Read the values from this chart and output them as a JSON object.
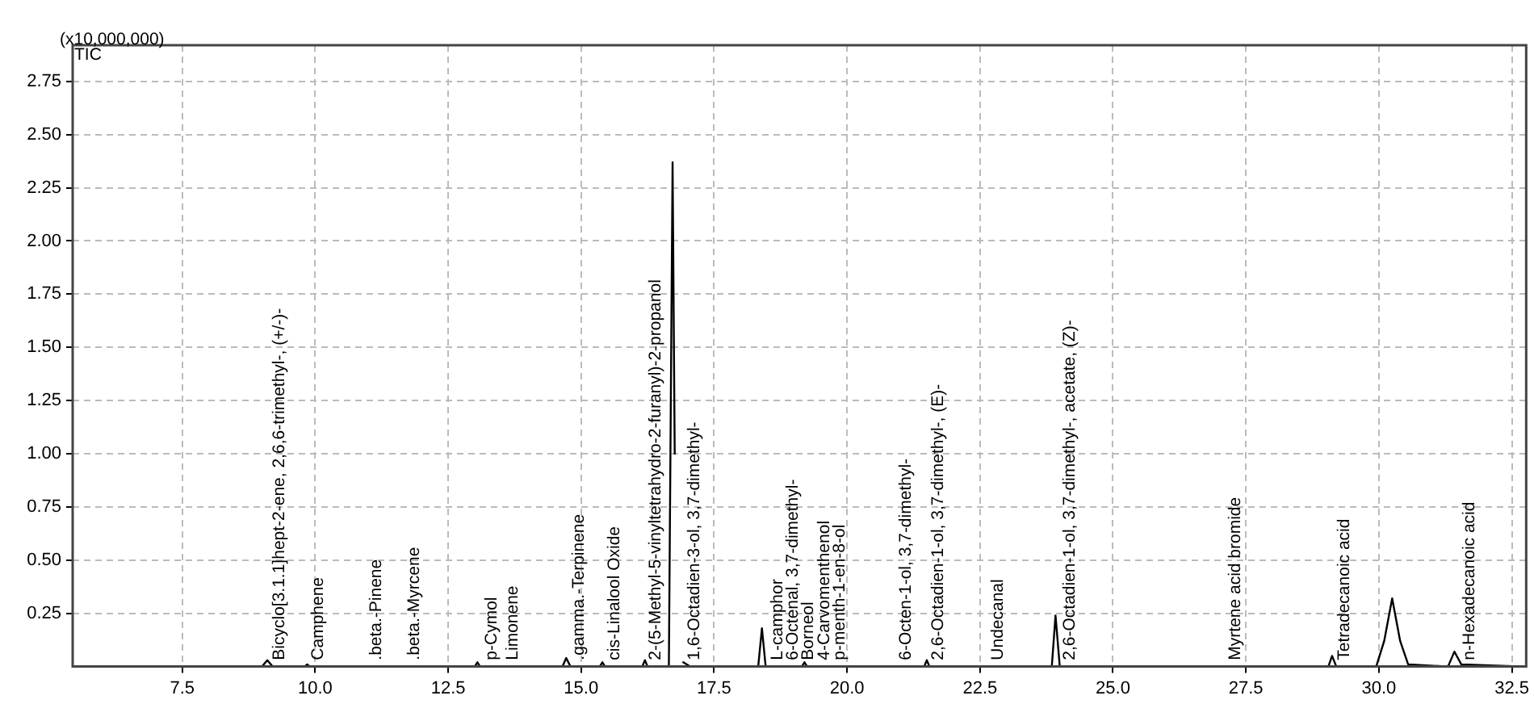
{
  "chart_data": {
    "type": "line",
    "ylabel": "(x10,000,000)",
    "x": [
      5.5,
      9.0,
      9.1,
      9.2,
      9.8,
      9.85,
      9.9,
      13.0,
      13.05,
      13.1,
      14.65,
      14.72,
      14.8,
      15.35,
      15.4,
      15.45,
      16.15,
      16.2,
      16.25,
      16.65,
      16.72,
      16.76,
      16.8,
      16.85,
      16.92,
      17.05,
      18.33,
      18.4,
      18.47,
      19.15,
      19.2,
      19.25,
      21.45,
      21.5,
      21.55,
      23.85,
      23.92,
      24.0,
      29.05,
      29.12,
      29.2,
      29.95,
      30.1,
      30.25,
      30.4,
      30.55,
      31.3,
      31.42,
      31.55,
      32.75
    ],
    "series": [
      {
        "color": "#000000",
        "values": [
          0,
          0,
          0.03,
          0,
          0,
          0.01,
          0,
          0,
          0.02,
          0,
          0,
          0.04,
          0,
          0,
          0.02,
          0,
          0,
          0.03,
          0,
          0,
          2.37,
          1.0,
          null,
          null,
          0.02,
          0,
          0,
          0.18,
          0,
          0,
          0.02,
          0,
          0,
          0.03,
          0,
          0,
          0.24,
          0,
          0,
          0.05,
          0,
          0,
          0.12,
          0.32,
          0.12,
          0.01,
          0,
          0.07,
          0.01,
          0
        ]
      }
    ],
    "xlim": [
      5.44,
      32.77
    ],
    "ylim": [
      0,
      2.92
    ],
    "xticks": [
      {
        "value": 7.5,
        "label": "7.5"
      },
      {
        "value": 10,
        "label": "10.0"
      },
      {
        "value": 12.5,
        "label": "12.5"
      },
      {
        "value": 15,
        "label": "15.0"
      },
      {
        "value": 17.5,
        "label": "17.5"
      },
      {
        "value": 20,
        "label": "20.0"
      },
      {
        "value": 22.5,
        "label": "22.5"
      },
      {
        "value": 25,
        "label": "25.0"
      },
      {
        "value": 27.5,
        "label": "27.5"
      },
      {
        "value": 30,
        "label": "30.0"
      },
      {
        "value": 32.5,
        "label": "32.5"
      }
    ],
    "yticks": [
      {
        "value": 0.25,
        "label": "0.25"
      },
      {
        "value": 0.5,
        "label": "0.50"
      },
      {
        "value": 0.75,
        "label": "0.75"
      },
      {
        "value": 1,
        "label": "1.00"
      },
      {
        "value": 1.25,
        "label": "1.25"
      },
      {
        "value": 1.5,
        "label": "1.50"
      },
      {
        "value": 1.75,
        "label": "1.75"
      },
      {
        "value": 2,
        "label": "2.00"
      },
      {
        "value": 2.25,
        "label": "2.25"
      },
      {
        "value": 2.5,
        "label": "2.50"
      },
      {
        "value": 2.75,
        "label": "2.75"
      }
    ],
    "grid": true,
    "legend": false,
    "marker": "none",
    "line_style": "solid",
    "annotations": [
      "TIC",
      {
        "text": "Bicyclo[3.1.1]hept-2-ene, 2,6,6-trimethyl-, (+/-)-",
        "x": 9.17,
        "y": 0.03
      },
      {
        "text": "Camphene",
        "x": 9.9,
        "y": 0.03
      },
      {
        "text": ".beta.-Pinene",
        "x": 10.99,
        "y": 0.03
      },
      {
        "text": ".beta.-Myrcene",
        "x": 11.71,
        "y": 0.03
      },
      {
        "text": "p-Cymol",
        "x": 13.17,
        "y": 0.03
      },
      {
        "text": "Limonene",
        "x": 13.56,
        "y": 0.03
      },
      {
        "text": ".gamma.-Terpinene",
        "x": 14.8,
        "y": 0.03
      },
      {
        "text": "cis-Linalool Oxide",
        "x": 15.47,
        "y": 0.03
      },
      {
        "text": "2-(5-Methyl-5-vinyltetrahydro-2-furanyl)-2-propanol",
        "x": 16.25,
        "y": 0.03
      },
      {
        "text": "1,6-Octadien-3-ol, 3,7-dimethyl-",
        "x": 16.97,
        "y": 0.03
      },
      {
        "text": "L-camphor",
        "x": 18.53,
        "y": 0.03
      },
      {
        "text": "6-Octenal, 3,7-dimethyl-",
        "x": 18.83,
        "y": 0.03
      },
      {
        "text": "Borneol",
        "x": 19.12,
        "y": 0.03
      },
      {
        "text": "4-Carvomenthenol",
        "x": 19.41,
        "y": 0.03
      },
      {
        "text": "p-menth-1-en-8-ol",
        "x": 19.7,
        "y": 0.03
      },
      {
        "text": "6-Octen-1-ol, 3,7-dimethyl-",
        "x": 20.95,
        "y": 0.03
      },
      {
        "text": "2,6-Octadien-1-ol, 3,7-dimethyl-, (E)-",
        "x": 21.56,
        "y": 0.03
      },
      {
        "text": "Undecanal",
        "x": 22.68,
        "y": 0.03
      },
      {
        "text": "2,6-Octadien-1-ol, 3,7-dimethyl-, acetate, (Z)-",
        "x": 24.03,
        "y": 0.03
      },
      {
        "text": "Myrtene acid bromide",
        "x": 27.15,
        "y": 0.03
      },
      {
        "text": "Tetradecanoic acid",
        "x": 29.2,
        "y": 0.03
      },
      {
        "text": "n-Hexadecanoic acid",
        "x": 31.55,
        "y": 0.03
      }
    ]
  }
}
